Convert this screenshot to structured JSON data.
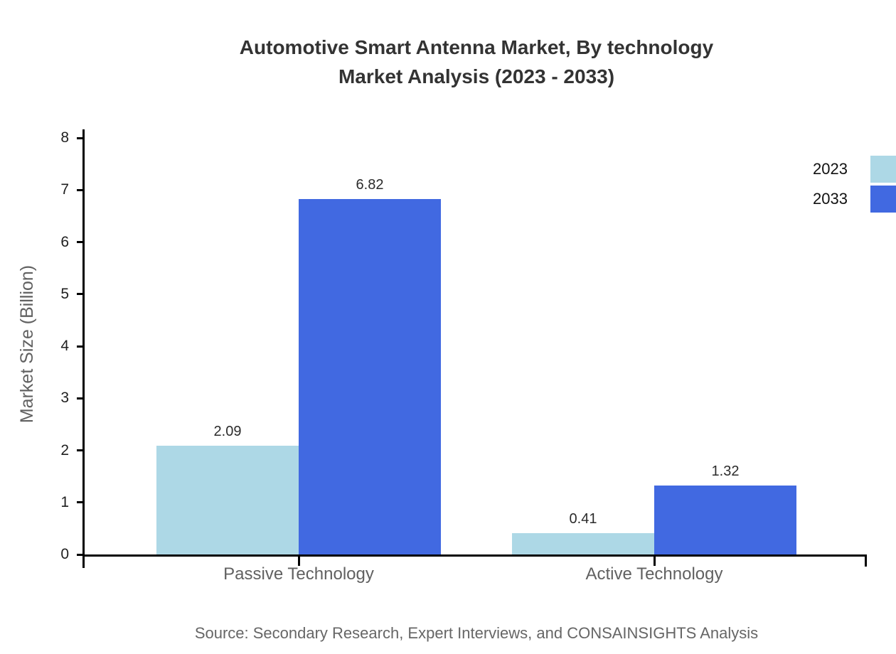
{
  "title": {
    "line1": "Automotive Smart Antenna Market, By technology",
    "line2": "Market Analysis (2023 - 2033)"
  },
  "source": "Source: Secondary Research, Expert Interviews, and CONSAINSIGHTS Analysis",
  "legend": [
    {
      "label": "2023",
      "color": "#ADD8E6"
    },
    {
      "label": "2033",
      "color": "#4169E1"
    }
  ],
  "axes": {
    "y_label": "Market Size (Billion)"
  },
  "colors": {
    "axis": "#000000",
    "title_text": "#333333",
    "muted_text": "#616161",
    "series_2023": "#ADD8E6",
    "series_2033": "#4169E1",
    "background": "#FFFFFF"
  },
  "chart_data": {
    "type": "bar",
    "categories": [
      "Passive Technology",
      "Active Technology"
    ],
    "series": [
      {
        "name": "2023",
        "color": "#ADD8E6",
        "values": [
          2.09,
          0.41
        ]
      },
      {
        "name": "2033",
        "color": "#4169E1",
        "values": [
          6.82,
          1.32
        ]
      }
    ],
    "title": "Automotive Smart Antenna Market, By technology Market Analysis (2023 - 2033)",
    "xlabel": "",
    "ylabel": "Market Size (Billion)",
    "ylim": [
      0,
      8
    ],
    "yticks": [
      0,
      1,
      2,
      3,
      4,
      5,
      6,
      7,
      8
    ],
    "grid": false,
    "legend_position": "top-right",
    "value_labels": true,
    "value_label_format": "0.00"
  }
}
